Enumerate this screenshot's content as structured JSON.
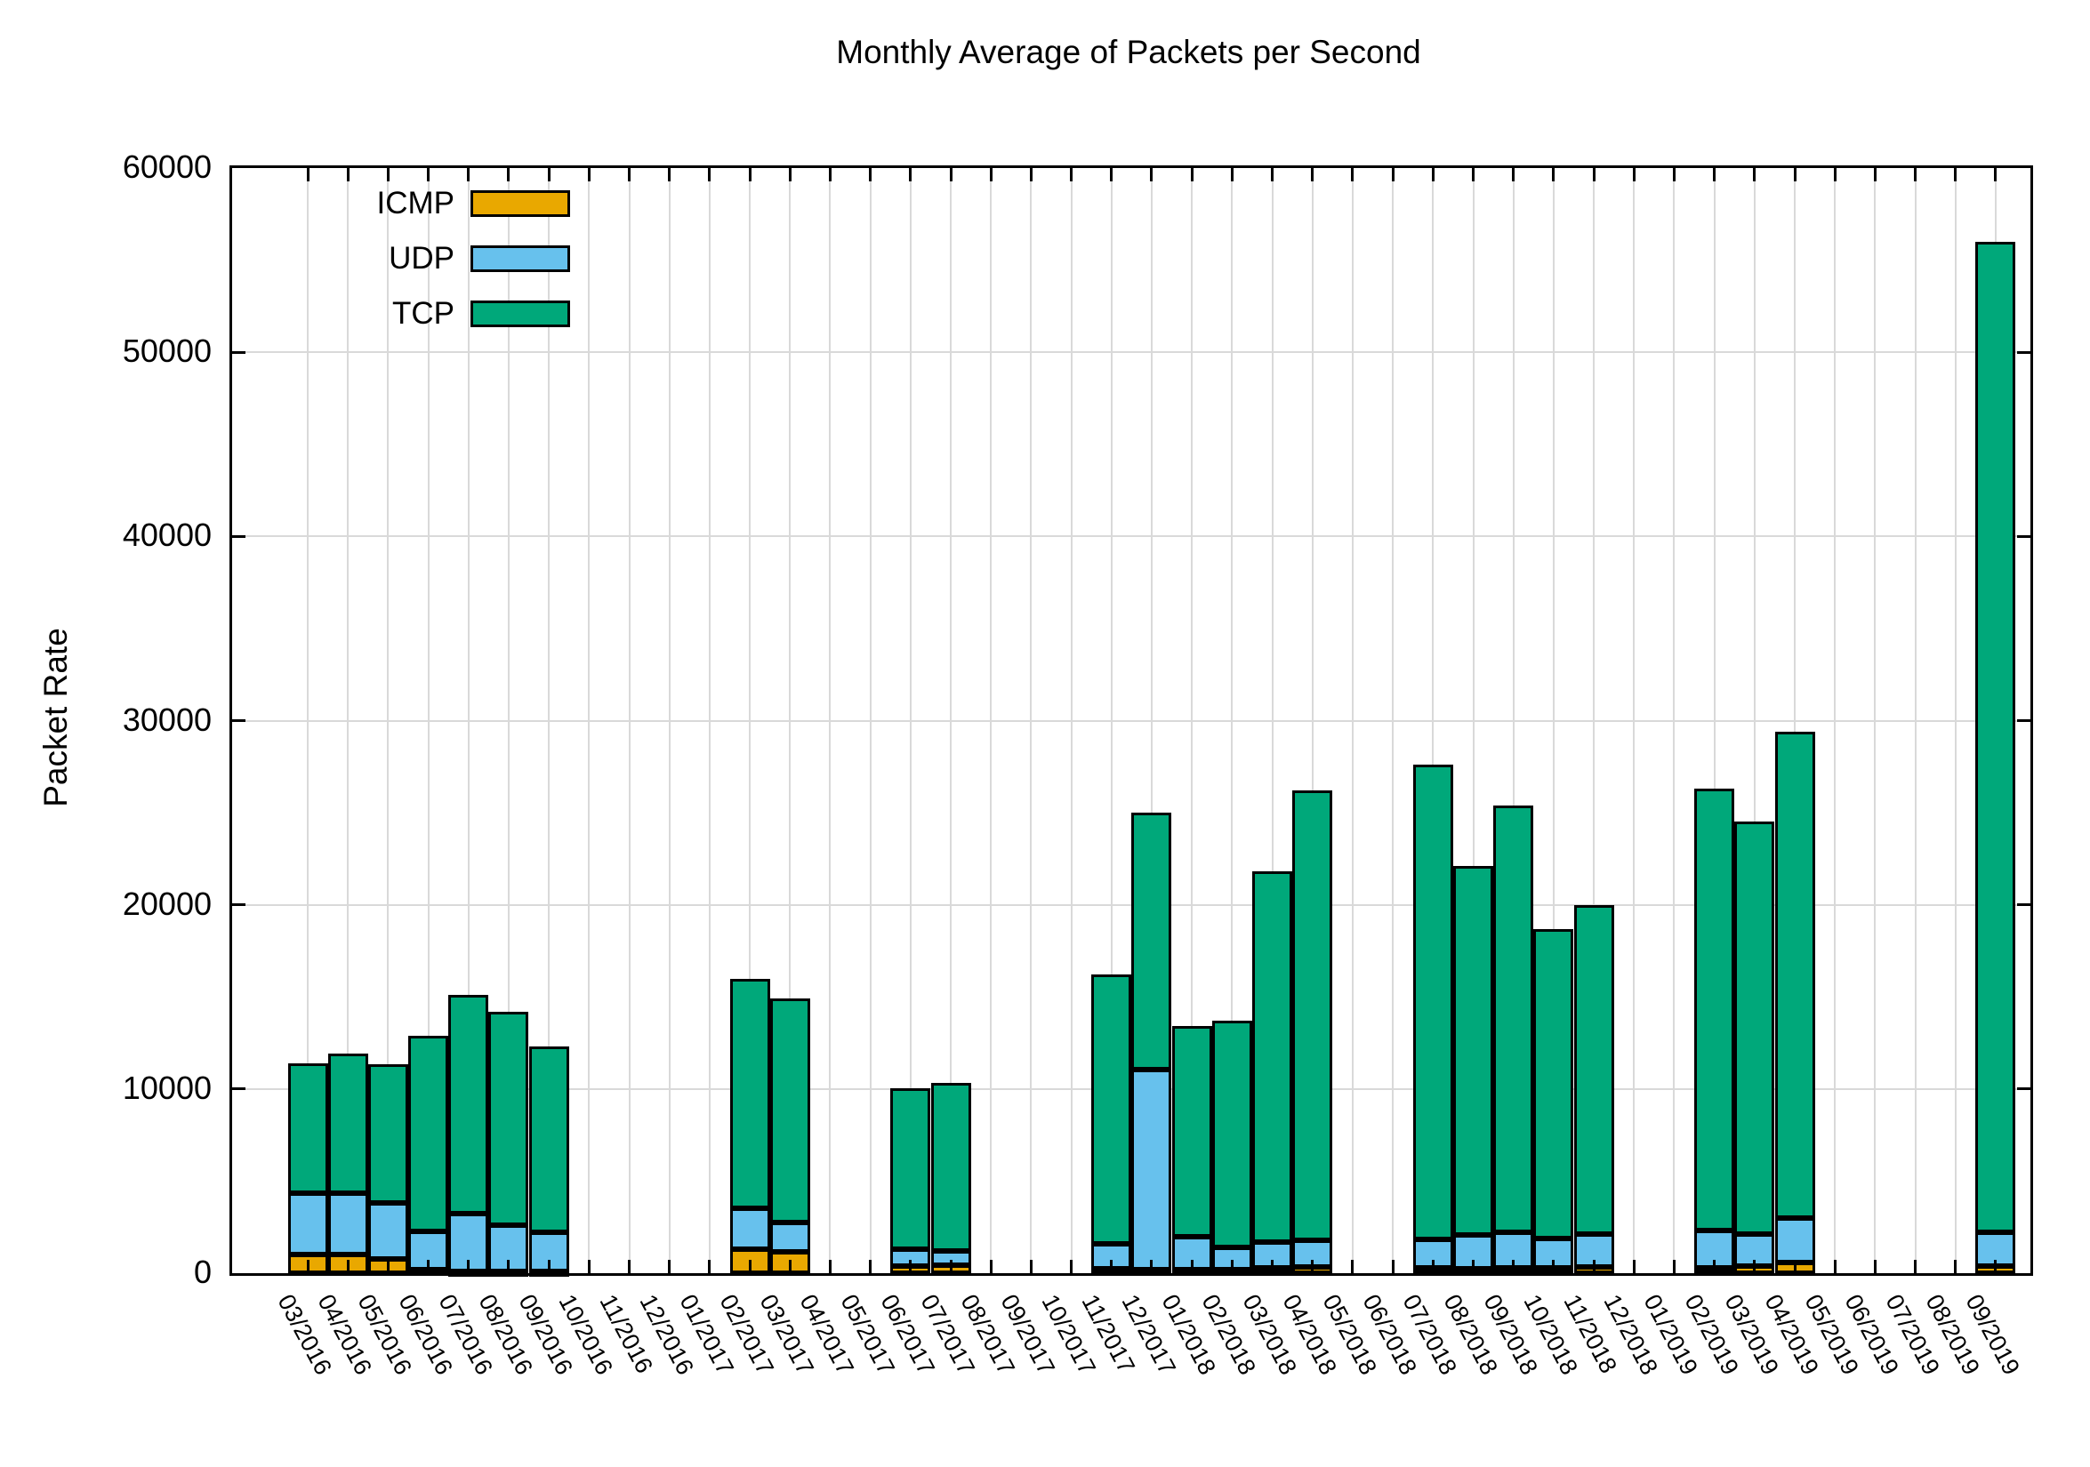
{
  "chart_data": {
    "type": "bar",
    "stacked": true,
    "title": "Monthly Average of Packets per Second",
    "ylabel": "Packet Rate",
    "xlabel": "",
    "ylim": [
      0,
      60000
    ],
    "yticks": [
      0,
      10000,
      20000,
      30000,
      40000,
      50000,
      60000
    ],
    "grid": "on",
    "legend_position": "top-left-inside",
    "categories": [
      "03/2016",
      "04/2016",
      "05/2016",
      "06/2016",
      "07/2016",
      "08/2016",
      "09/2016",
      "10/2016",
      "11/2016",
      "12/2016",
      "01/2017",
      "02/2017",
      "03/2017",
      "04/2017",
      "05/2017",
      "06/2017",
      "07/2017",
      "08/2017",
      "09/2017",
      "10/2017",
      "11/2017",
      "12/2017",
      "01/2018",
      "02/2018",
      "03/2018",
      "04/2018",
      "05/2018",
      "06/2018",
      "07/2018",
      "08/2018",
      "09/2018",
      "10/2018",
      "11/2018",
      "12/2018",
      "01/2019",
      "02/2019",
      "03/2019",
      "04/2019",
      "05/2019",
      "06/2019",
      "07/2019",
      "08/2019",
      "09/2019"
    ],
    "series": [
      {
        "name": "ICMP",
        "color": "#e9a800",
        "values": [
          1000,
          1000,
          750,
          200,
          100,
          100,
          100,
          0,
          0,
          0,
          0,
          1300,
          1150,
          0,
          0,
          400,
          430,
          0,
          0,
          0,
          240,
          180,
          170,
          170,
          300,
          320,
          0,
          0,
          280,
          250,
          280,
          280,
          340,
          0,
          0,
          300,
          400,
          600,
          0,
          0,
          0,
          0,
          400
        ]
      },
      {
        "name": "UDP",
        "color": "#67c1ed",
        "values": [
          3350,
          3350,
          3050,
          2050,
          3150,
          2500,
          2100,
          0,
          0,
          0,
          0,
          2200,
          1600,
          0,
          0,
          900,
          770,
          0,
          0,
          0,
          1370,
          10880,
          1790,
          1240,
          1400,
          1450,
          0,
          0,
          1570,
          1840,
          1950,
          1620,
          1790,
          0,
          0,
          2000,
          1700,
          2400,
          0,
          0,
          0,
          0,
          1800
        ]
      },
      {
        "name": "TCP",
        "color": "#00a87a",
        "values": [
          7050,
          7550,
          7550,
          10650,
          11850,
          11600,
          10100,
          0,
          0,
          0,
          0,
          12500,
          12150,
          0,
          0,
          8750,
          9150,
          0,
          0,
          0,
          14590,
          13940,
          11440,
          12290,
          20100,
          24430,
          0,
          0,
          25750,
          20010,
          23170,
          16800,
          17870,
          0,
          0,
          24000,
          22400,
          26400,
          0,
          0,
          0,
          0,
          53800
        ]
      }
    ],
    "legend": [
      {
        "label": "ICMP",
        "color": "#e9a800"
      },
      {
        "label": "UDP",
        "color": "#67c1ed"
      },
      {
        "label": "TCP",
        "color": "#00a87a"
      }
    ]
  }
}
